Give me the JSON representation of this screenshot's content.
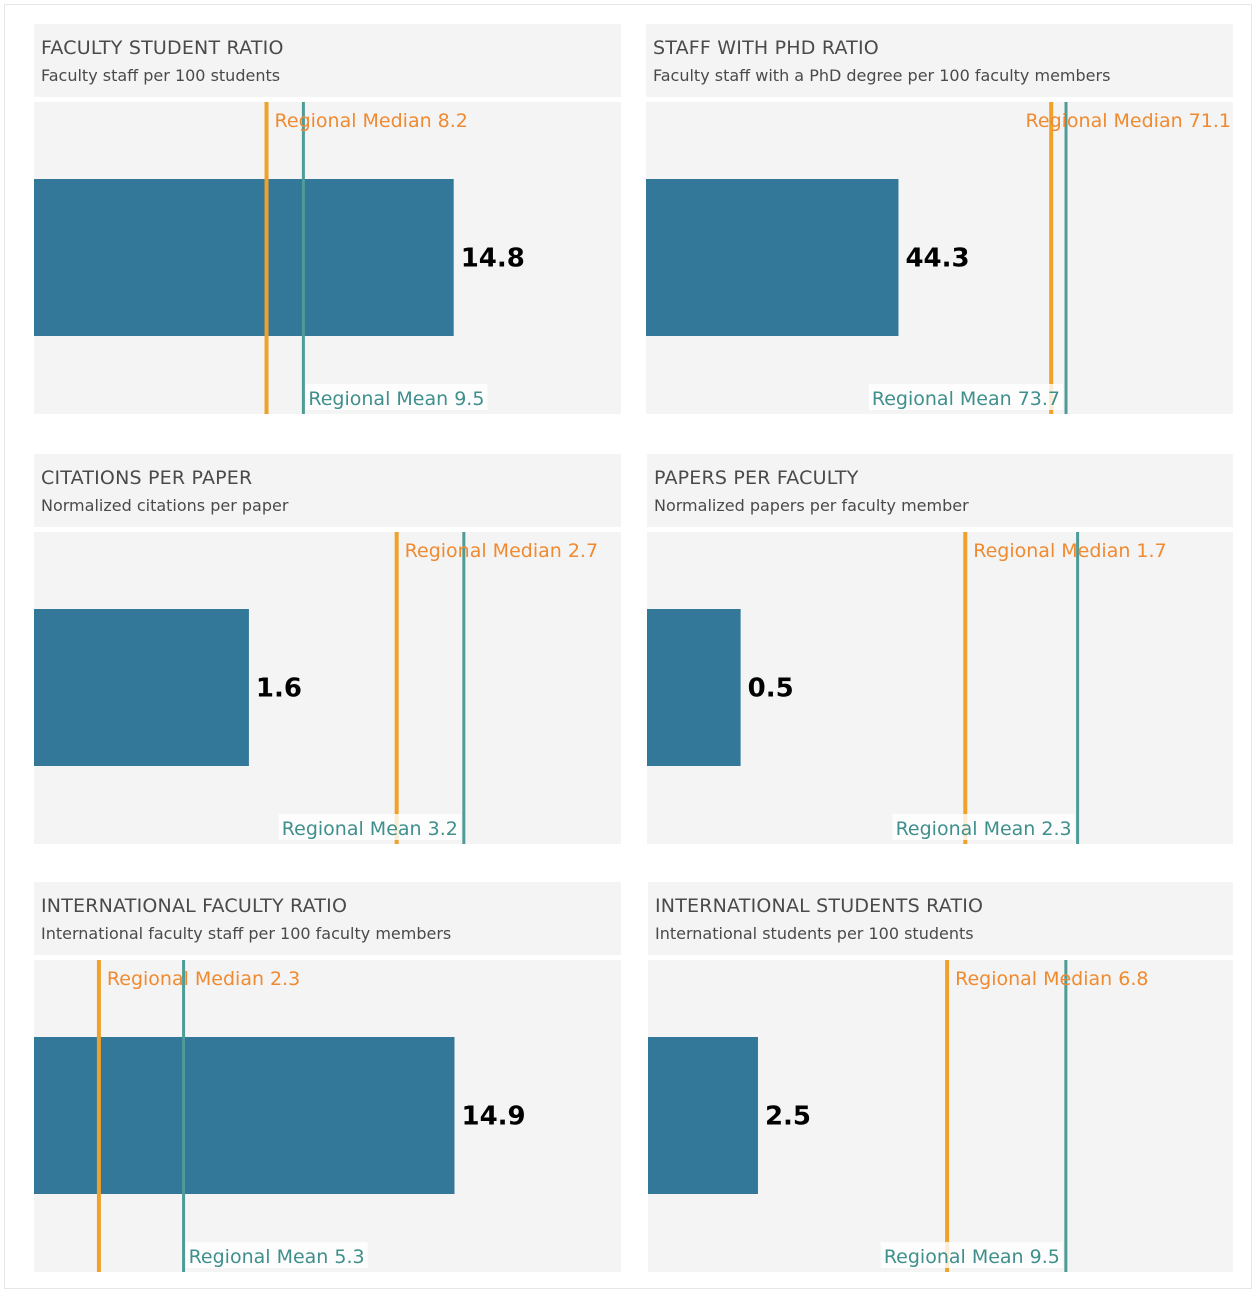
{
  "chart_data": [
    {
      "type": "bar",
      "title": "FACULTY STUDENT RATIO",
      "subtitle": "Faculty staff per 100 students",
      "value": 14.8,
      "value_label": "14.8",
      "xlim": [
        0,
        20.7
      ],
      "median": {
        "label": "Regional Median 8.2",
        "value": 8.2
      },
      "mean": {
        "label": "Regional Mean 9.5",
        "value": 9.5
      }
    },
    {
      "type": "bar",
      "title": "STAFF WITH PHD RATIO",
      "subtitle": "Faculty staff with a PhD degree per 100 faculty members",
      "value": 44.3,
      "value_label": "44.3",
      "xlim": [
        0,
        103
      ],
      "median": {
        "label": "Regional Median 71.1",
        "value": 71.1
      },
      "mean": {
        "label": "Regional Mean 73.7",
        "value": 73.7
      }
    },
    {
      "type": "bar",
      "title": "CITATIONS PER PAPER",
      "subtitle": "Normalized citations per paper",
      "value": 1.6,
      "value_label": "1.6",
      "xlim": [
        0,
        4.37
      ],
      "median": {
        "label": "Regional Median 2.7",
        "value": 2.7
      },
      "mean": {
        "label": "Regional Mean 3.2",
        "value": 3.2
      }
    },
    {
      "type": "bar",
      "title": "PAPERS PER FACULTY",
      "subtitle": "Normalized papers per faculty member",
      "value": 0.5,
      "value_label": "0.5",
      "xlim": [
        0,
        3.13
      ],
      "median": {
        "label": "Regional Median 1.7",
        "value": 1.7
      },
      "mean": {
        "label": "Regional Mean 2.3",
        "value": 2.3
      }
    },
    {
      "type": "bar",
      "title": "INTERNATIONAL FACULTY RATIO",
      "subtitle": "International faculty staff per 100 faculty members",
      "value": 14.9,
      "value_label": "14.9",
      "xlim": [
        0,
        20.8
      ],
      "median": {
        "label": "Regional Median 2.3",
        "value": 2.3
      },
      "mean": {
        "label": "Regional Mean 5.3",
        "value": 5.3
      }
    },
    {
      "type": "bar",
      "title": "INTERNATIONAL STUDENTS RATIO",
      "subtitle": "International students per 100 students",
      "value": 2.5,
      "value_label": "2.5",
      "xlim": [
        0,
        13.3
      ],
      "median": {
        "label": "Regional Median 6.8",
        "value": 6.8
      },
      "mean": {
        "label": "Regional Mean 9.5",
        "value": 9.5
      }
    }
  ],
  "colors": {
    "bar": "#337799",
    "median": "#f0a12a",
    "median_text": "#f08a30",
    "mean": "#4e9b98",
    "mean_text": "#3f8f8c",
    "value_text": "#000000",
    "panel_bg": "#f4f4f4",
    "header_text": "#4a4a4a"
  }
}
